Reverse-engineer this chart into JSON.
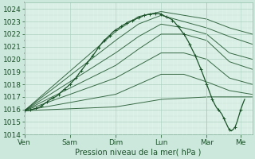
{
  "xlabel": "Pression niveau de la mer( hPa )",
  "ylim": [
    1014,
    1024.5
  ],
  "yticks": [
    1014,
    1015,
    1016,
    1017,
    1018,
    1019,
    1020,
    1021,
    1022,
    1023,
    1024
  ],
  "day_labels": [
    "Ven",
    "Sam",
    "Dim",
    "Lun",
    "Mar",
    "Me"
  ],
  "day_positions": [
    0,
    24,
    48,
    72,
    96,
    114
  ],
  "xlim": [
    0,
    120
  ],
  "bg_color": "#cce8dc",
  "plot_bg_color": "#dff2ea",
  "grid_major_color": "#aacfbe",
  "grid_minor_color": "#c0dfd2",
  "line_color": "#1a5228",
  "obs_line": {
    "x": [
      0,
      3,
      6,
      9,
      12,
      15,
      18,
      21,
      24,
      27,
      30,
      33,
      36,
      39,
      42,
      45,
      48,
      51,
      54,
      57,
      60,
      63,
      66,
      69,
      72,
      75,
      78,
      81,
      84,
      87,
      90,
      93,
      96,
      97,
      98,
      99,
      100,
      101,
      102,
      103,
      104,
      105,
      106,
      107,
      108,
      109,
      110,
      111,
      112,
      113,
      114,
      116
    ],
    "y": [
      1015.9,
      1015.95,
      1016.1,
      1016.3,
      1016.6,
      1016.9,
      1017.2,
      1017.6,
      1018.0,
      1018.5,
      1019.1,
      1019.7,
      1020.3,
      1020.9,
      1021.5,
      1021.9,
      1022.3,
      1022.6,
      1022.9,
      1023.1,
      1023.3,
      1023.5,
      1023.6,
      1023.65,
      1023.6,
      1023.4,
      1023.1,
      1022.6,
      1022.0,
      1021.2,
      1020.3,
      1019.2,
      1018.0,
      1017.6,
      1017.2,
      1016.8,
      1016.5,
      1016.2,
      1016.0,
      1015.8,
      1015.6,
      1015.3,
      1015.0,
      1014.7,
      1014.4,
      1014.3,
      1014.4,
      1014.6,
      1015.0,
      1015.5,
      1016.0,
      1016.8
    ]
  },
  "forecast_lines": [
    {
      "x": [
        0,
        48,
        60,
        72,
        84,
        96,
        108,
        120
      ],
      "y": [
        1015.9,
        1022.2,
        1023.4,
        1023.8,
        1023.5,
        1023.2,
        1022.5,
        1022.0
      ]
    },
    {
      "x": [
        0,
        48,
        60,
        72,
        84,
        96,
        108,
        120
      ],
      "y": [
        1015.9,
        1021.5,
        1022.8,
        1023.5,
        1023.0,
        1022.5,
        1021.8,
        1021.2
      ]
    },
    {
      "x": [
        0,
        48,
        60,
        72,
        84,
        96,
        108,
        120
      ],
      "y": [
        1015.9,
        1020.5,
        1021.8,
        1022.8,
        1022.5,
        1022.0,
        1020.5,
        1020.0
      ]
    },
    {
      "x": [
        0,
        48,
        60,
        72,
        84,
        96,
        108,
        120
      ],
      "y": [
        1015.9,
        1019.5,
        1020.8,
        1022.0,
        1022.0,
        1021.5,
        1019.8,
        1019.2
      ]
    },
    {
      "x": [
        0,
        48,
        60,
        72,
        84,
        96,
        108,
        120
      ],
      "y": [
        1015.9,
        1018.5,
        1019.5,
        1020.5,
        1020.5,
        1020.0,
        1018.5,
        1018.0
      ]
    },
    {
      "x": [
        0,
        48,
        60,
        72,
        84,
        96,
        108,
        120
      ],
      "y": [
        1015.9,
        1017.2,
        1018.0,
        1018.8,
        1018.8,
        1018.2,
        1017.5,
        1017.2
      ]
    },
    {
      "x": [
        0,
        48,
        60,
        72,
        84,
        96,
        108,
        120
      ],
      "y": [
        1015.9,
        1016.2,
        1016.5,
        1016.8,
        1016.9,
        1017.0,
        1017.0,
        1017.0
      ]
    }
  ]
}
